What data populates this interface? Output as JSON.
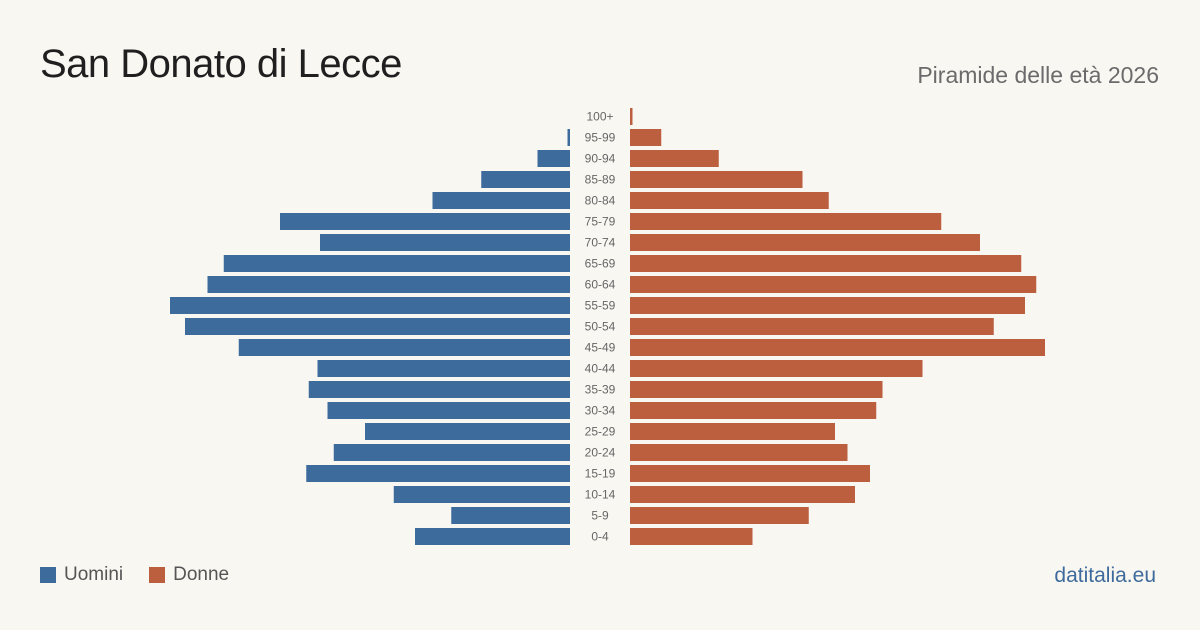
{
  "title": "San Donato di Lecce",
  "subtitle": "Piramide delle età 2026",
  "legend": {
    "men_label": "Uomini",
    "women_label": "Donne"
  },
  "source": "datitalia.eu",
  "colors": {
    "men": "#3d6b9c",
    "women": "#bb5f3e",
    "background": "#f9f7f2"
  },
  "chart_data": {
    "type": "bar",
    "orientation": "horizontal-diverging",
    "categories": [
      "100+",
      "95-99",
      "90-94",
      "85-89",
      "80-84",
      "75-79",
      "70-74",
      "65-69",
      "60-64",
      "55-59",
      "50-54",
      "45-49",
      "40-44",
      "35-39",
      "30-34",
      "25-29",
      "20-24",
      "15-19",
      "10-14",
      "5-9",
      "0-4"
    ],
    "series": [
      {
        "name": "Uomini",
        "values": [
          0,
          2,
          26,
          71,
          110,
          232,
          200,
          277,
          290,
          320,
          308,
          265,
          202,
          209,
          194,
          164,
          189,
          211,
          141,
          95,
          124
        ]
      },
      {
        "name": "Donne",
        "values": [
          2,
          25,
          71,
          138,
          159,
          249,
          280,
          313,
          325,
          316,
          291,
          332,
          234,
          202,
          197,
          164,
          174,
          192,
          180,
          143,
          98
        ]
      }
    ],
    "grid": false,
    "legend_position": "bottom-left"
  }
}
